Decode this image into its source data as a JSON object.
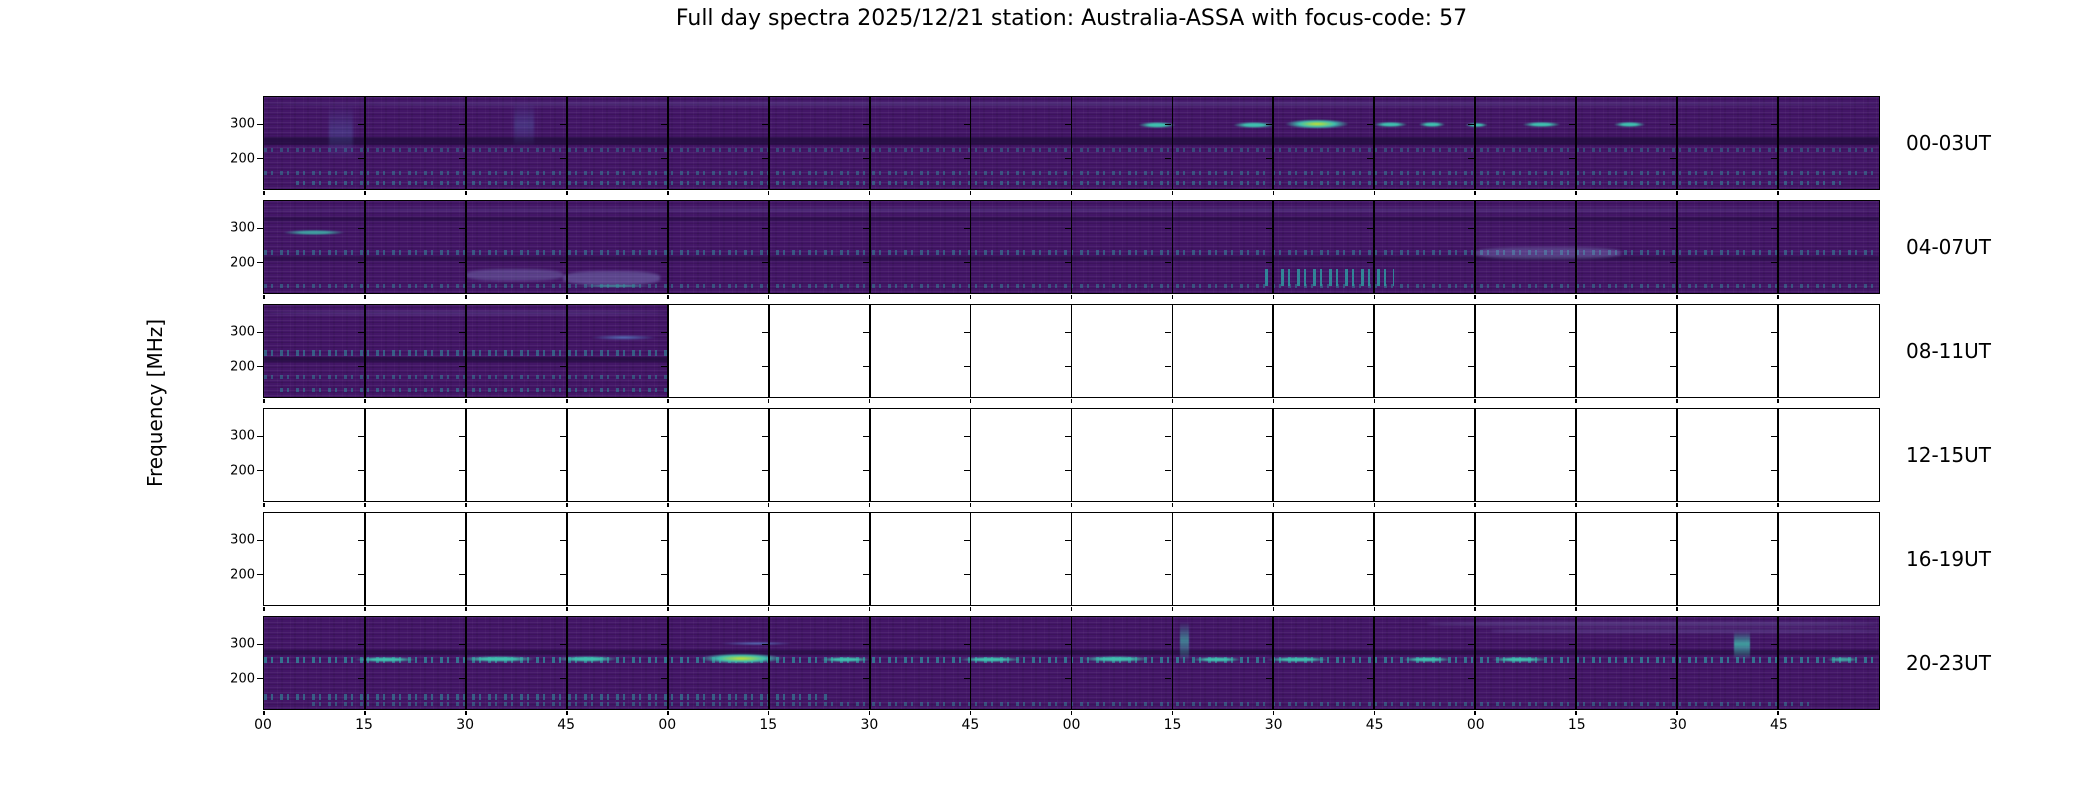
{
  "title": "Full day spectra 2025/12/21 station: Australia-ASSA with focus-code: 57",
  "y_axis_label": "Frequency [MHz]",
  "colors": {
    "figure_background": "#ffffff",
    "empty_panel": "#ffffff",
    "axis_color": "#000000",
    "spectrogram_base": "#431667",
    "spectrogram_dark_band": "#1f0b3a",
    "bright_cyan": "#3fbfae",
    "bright_green": "#c8e02e",
    "light_blue": "#5b8ad0",
    "teal_speckle": "#2f98a0",
    "light_band": "#8f9fd8"
  },
  "chart_data": {
    "type": "heatmap",
    "subtype": "radio-spectrogram-daily-overview",
    "title": "Full day spectra 2025/12/21 station: Australia-ASSA with focus-code: 57",
    "colormap": "viridis",
    "ylabel": "Frequency [MHz]",
    "xlabel": "",
    "grid": false,
    "legend": false,
    "subplots_per_row": 16,
    "minutes_per_subplot": 15,
    "x_tick_labels": [
      "00",
      "15",
      "30",
      "45",
      "00",
      "15",
      "30",
      "45",
      "00",
      "15",
      "30",
      "45",
      "00",
      "15",
      "30",
      "45"
    ],
    "y_ticks": [
      {
        "label": "300",
        "value_mhz": 300,
        "frac": 0.3
      },
      {
        "label": "200",
        "value_mhz": 200,
        "frac": 0.67
      }
    ],
    "rows": [
      {
        "label": "00-03UT",
        "filled_fraction": 1
      },
      {
        "label": "04-07UT",
        "filled_fraction": 1
      },
      {
        "label": "08-11UT",
        "filled_fraction": 0.25
      },
      {
        "label": "12-15UT",
        "filled_fraction": 0
      },
      {
        "label": "16-19UT",
        "filled_fraction": 0
      },
      {
        "label": "20-23UT",
        "filled_fraction": 1
      }
    ],
    "features": [
      {
        "row": 0,
        "type": "light-band",
        "x": 0,
        "y": 0.05,
        "w": 1,
        "h": 0.05,
        "opacity": 0.18
      },
      {
        "row": 0,
        "type": "dark-band",
        "x": 0,
        "y": 0.43,
        "w": 1,
        "h": 0.09
      },
      {
        "row": 0,
        "type": "speckle",
        "x": 0,
        "y": 0.55,
        "w": 1,
        "h": 0.05,
        "opacity": 0.4
      },
      {
        "row": 0,
        "type": "speckle",
        "x": 0,
        "y": 0.8,
        "w": 1,
        "h": 0.045,
        "opacity": 0.45
      },
      {
        "row": 0,
        "type": "speckle",
        "x": 0.02,
        "y": 0.91,
        "w": 0.96,
        "h": 0.05,
        "opacity": 0.5
      },
      {
        "row": 0,
        "type": "column",
        "x": 0.04,
        "y": 0.08,
        "w": 0.015,
        "h": 0.6
      },
      {
        "row": 0,
        "type": "column",
        "x": 0.155,
        "y": 0.05,
        "w": 0.012,
        "h": 0.5
      },
      {
        "row": 0,
        "type": "cyan-streak",
        "x": 0.538,
        "y": 0.26,
        "w": 0.03,
        "h": 0.09
      },
      {
        "row": 0,
        "type": "cyan-streak",
        "x": 0.596,
        "y": 0.26,
        "w": 0.034,
        "h": 0.09
      },
      {
        "row": 0,
        "type": "green-blob",
        "x": 0.627,
        "y": 0.23,
        "w": 0.05,
        "h": 0.13
      },
      {
        "row": 0,
        "type": "cyan-streak",
        "x": 0.684,
        "y": 0.26,
        "w": 0.027,
        "h": 0.08
      },
      {
        "row": 0,
        "type": "cyan-streak",
        "x": 0.713,
        "y": 0.26,
        "w": 0.021,
        "h": 0.08
      },
      {
        "row": 0,
        "type": "cyan-streak",
        "x": 0.742,
        "y": 0.27,
        "w": 0.018,
        "h": 0.07
      },
      {
        "row": 0,
        "type": "cyan-streak",
        "x": 0.776,
        "y": 0.26,
        "w": 0.03,
        "h": 0.08
      },
      {
        "row": 0,
        "type": "cyan-streak",
        "x": 0.833,
        "y": 0.26,
        "w": 0.025,
        "h": 0.08
      },
      {
        "row": 1,
        "type": "cyan-streak",
        "x": 0.006,
        "y": 0.3,
        "w": 0.05,
        "h": 0.08,
        "opacity": 0.8
      },
      {
        "row": 1,
        "type": "light-band",
        "x": 0,
        "y": 0.08,
        "w": 1,
        "h": 0.045,
        "opacity": 0.15
      },
      {
        "row": 1,
        "type": "dark-band",
        "x": 0,
        "y": 0.17,
        "w": 1,
        "h": 0.05,
        "opacity": 0.5
      },
      {
        "row": 1,
        "type": "speckle",
        "x": 0,
        "y": 0.53,
        "w": 1,
        "h": 0.055,
        "opacity": 0.5
      },
      {
        "row": 1,
        "type": "dark-band",
        "x": 0,
        "y": 0.6,
        "w": 1,
        "h": 0.05,
        "opacity": 0.5
      },
      {
        "row": 1,
        "type": "light-band",
        "x": 0.125,
        "y": 0.74,
        "w": 0.06,
        "h": 0.13,
        "opacity": 0.3
      },
      {
        "row": 1,
        "type": "light-band",
        "x": 0.185,
        "y": 0.76,
        "w": 0.06,
        "h": 0.15,
        "opacity": 0.35
      },
      {
        "row": 1,
        "type": "cyan-streak",
        "x": 0.19,
        "y": 0.9,
        "w": 0.055,
        "h": 0.05,
        "opacity": 0.6
      },
      {
        "row": 1,
        "type": "speckle",
        "x": 0.62,
        "y": 0.74,
        "w": 0.08,
        "h": 0.18,
        "opacity": 0.85
      },
      {
        "row": 1,
        "type": "light-band",
        "x": 0.75,
        "y": 0.5,
        "w": 0.09,
        "h": 0.13,
        "opacity": 0.3
      },
      {
        "row": 1,
        "type": "speckle",
        "x": 0,
        "y": 0.9,
        "w": 1,
        "h": 0.05,
        "opacity": 0.45
      },
      {
        "row": 2,
        "type": "light-band",
        "x": 0,
        "y": 0.06,
        "w": 0.25,
        "h": 0.05,
        "opacity": 0.18
      },
      {
        "row": 2,
        "type": "speckle",
        "x": 0,
        "y": 0.49,
        "w": 0.25,
        "h": 0.06,
        "opacity": 0.55
      },
      {
        "row": 2,
        "type": "dark-band",
        "x": 0,
        "y": 0.56,
        "w": 0.25,
        "h": 0.06
      },
      {
        "row": 2,
        "type": "blue-streak",
        "x": 0.195,
        "y": 0.32,
        "w": 0.055,
        "h": 0.07
      },
      {
        "row": 2,
        "type": "speckle",
        "x": 0,
        "y": 0.76,
        "w": 0.25,
        "h": 0.045,
        "opacity": 0.45
      },
      {
        "row": 2,
        "type": "speckle",
        "x": 0.01,
        "y": 0.9,
        "w": 0.24,
        "h": 0.045,
        "opacity": 0.5
      },
      {
        "row": 5,
        "type": "dark-band",
        "x": 0,
        "y": 0.36,
        "w": 1,
        "h": 0.05,
        "opacity": 0.6
      },
      {
        "row": 5,
        "type": "speckle",
        "x": 0,
        "y": 0.44,
        "w": 1,
        "h": 0.06,
        "opacity": 0.7
      },
      {
        "row": 5,
        "type": "cyan-streak",
        "x": 0.05,
        "y": 0.42,
        "w": 0.05,
        "h": 0.08
      },
      {
        "row": 5,
        "type": "cyan-streak",
        "x": 0.115,
        "y": 0.41,
        "w": 0.06,
        "h": 0.09
      },
      {
        "row": 5,
        "type": "cyan-streak",
        "x": 0.175,
        "y": 0.41,
        "w": 0.05,
        "h": 0.09
      },
      {
        "row": 5,
        "type": "green-blob",
        "x": 0.263,
        "y": 0.38,
        "w": 0.065,
        "h": 0.14
      },
      {
        "row": 5,
        "type": "cyan-streak",
        "x": 0.34,
        "y": 0.42,
        "w": 0.04,
        "h": 0.08
      },
      {
        "row": 5,
        "type": "cyan-streak",
        "x": 0.425,
        "y": 0.42,
        "w": 0.05,
        "h": 0.08
      },
      {
        "row": 5,
        "type": "cyan-streak",
        "x": 0.5,
        "y": 0.41,
        "w": 0.055,
        "h": 0.09
      },
      {
        "row": 5,
        "type": "cyan-streak",
        "x": 0.57,
        "y": 0.42,
        "w": 0.04,
        "h": 0.08
      },
      {
        "row": 5,
        "type": "cyan-streak",
        "x": 0.615,
        "y": 0.42,
        "w": 0.05,
        "h": 0.08
      },
      {
        "row": 5,
        "type": "cyan-streak",
        "x": 0.7,
        "y": 0.42,
        "w": 0.04,
        "h": 0.08
      },
      {
        "row": 5,
        "type": "cyan-streak",
        "x": 0.755,
        "y": 0.42,
        "w": 0.045,
        "h": 0.08
      },
      {
        "row": 5,
        "type": "cyan-streak",
        "x": 0.965,
        "y": 0.42,
        "w": 0.025,
        "h": 0.08,
        "opacity": 0.8
      },
      {
        "row": 5,
        "type": "blue-streak",
        "x": 0.275,
        "y": 0.26,
        "w": 0.06,
        "h": 0.06
      },
      {
        "row": 5,
        "type": "cyan-column",
        "x": 0.567,
        "y": 0.05,
        "w": 0.006,
        "h": 0.45,
        "opacity": 0.6
      },
      {
        "row": 5,
        "type": "cyan-column",
        "x": 0.91,
        "y": 0.15,
        "w": 0.01,
        "h": 0.32,
        "opacity": 0.8
      },
      {
        "row": 5,
        "type": "light-band",
        "x": 0.72,
        "y": 0.05,
        "w": 0.28,
        "h": 0.05,
        "opacity": 0.25
      },
      {
        "row": 5,
        "type": "light-band",
        "x": 0.76,
        "y": 0.13,
        "w": 0.24,
        "h": 0.04,
        "opacity": 0.2
      },
      {
        "row": 5,
        "type": "speckle",
        "x": 0,
        "y": 0.84,
        "w": 0.35,
        "h": 0.06,
        "opacity": 0.55
      },
      {
        "row": 5,
        "type": "speckle",
        "x": 0.03,
        "y": 0.92,
        "w": 0.93,
        "h": 0.045,
        "opacity": 0.45
      }
    ]
  }
}
